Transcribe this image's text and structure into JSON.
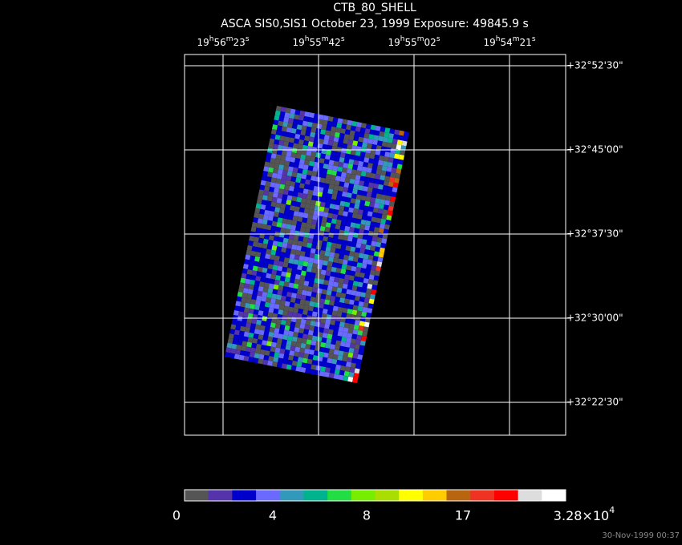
{
  "header": {
    "title": "CTB_80_SHELL",
    "subtitle": "ASCA SIS0,SIS1 October 23, 1999 Exposure: 49845.9 s"
  },
  "ra_labels": [
    [
      "19",
      "h",
      "56",
      "m",
      "23",
      "s"
    ],
    [
      "19",
      "h",
      "55",
      "m",
      "42",
      "s"
    ],
    [
      "19",
      "h",
      "55",
      "m",
      "02",
      "s"
    ],
    [
      "19",
      "h",
      "54",
      "m",
      "21",
      "s"
    ]
  ],
  "dec_labels": [
    "+32°52'30\"",
    "+32°45'00\"",
    "+32°37'30\"",
    "+32°30'00\"",
    "+32°22'30\""
  ],
  "colorbar": {
    "colors": [
      "#555555",
      "#5533aa",
      "#0000cc",
      "#6a6aff",
      "#3399bb",
      "#00b38f",
      "#22dd44",
      "#77ee00",
      "#aadd00",
      "#ffff00",
      "#ffcc00",
      "#b8650f",
      "#ee3322",
      "#ff0000",
      "#dddddd",
      "#ffffff"
    ],
    "labels": [
      "0",
      "4",
      "8",
      "17",
      [
        "3.28×10",
        "4"
      ]
    ]
  },
  "timestamp": "30-Nov-1999 00:37"
}
